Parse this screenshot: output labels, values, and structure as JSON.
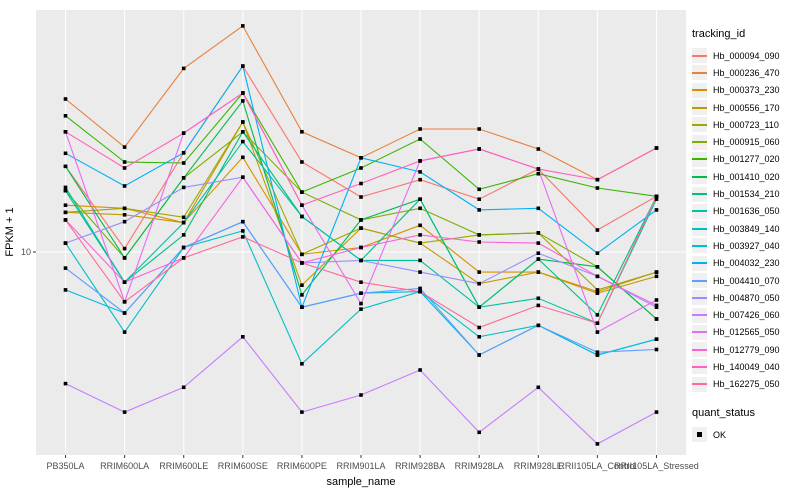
{
  "panel": {
    "bg": "#ebebeb",
    "grid_color": "#ffffff",
    "tick_color": "#333333",
    "tick_label_color": "#4d4d4d"
  },
  "axes": {
    "x_title": "sample_name",
    "y_title": "FPKM + 1"
  },
  "legend": {
    "tracking_title": "tracking_id",
    "quant_title": "quant_status",
    "quant_items": [
      {
        "label": "OK",
        "marker": "black-square"
      }
    ]
  },
  "chart_data": {
    "type": "line",
    "title": "",
    "xlabel": "sample_name",
    "ylabel": "FPKM + 1",
    "yscale": "log10",
    "y_ticks": [
      10
    ],
    "ylim": [
      1.7,
      85
    ],
    "grid": "white-on-gray",
    "legend_position": "right",
    "marker": "black-square",
    "x": [
      "PB350LA",
      "RRIM600LA",
      "RRIM600LE",
      "RRIM600SE",
      "RRIM600PE",
      "RRIM901LA",
      "RRIM928BA",
      "RRIM928LA",
      "RRIM928LE",
      "RRII105LA_Control",
      "RRII105LA_Stressed"
    ],
    "series": [
      {
        "name": "Hb_000094_090",
        "color": "#F8766D",
        "values": [
          21.0,
          10.3,
          23.6,
          50.0,
          21.8,
          16.1,
          18.7,
          15.8,
          20.5,
          12.1,
          16.2
        ]
      },
      {
        "name": "Hb_000236_470",
        "color": "#E8813A",
        "values": [
          37.6,
          24.8,
          49.0,
          70.8,
          28.3,
          22.6,
          29.0,
          29.0,
          24.4,
          18.7,
          24.6
        ]
      },
      {
        "name": "Hb_000373_230",
        "color": "#D89000",
        "values": [
          15.0,
          14.6,
          12.9,
          22.7,
          9.8,
          10.4,
          12.6,
          8.4,
          8.4,
          7.1,
          8.4
        ]
      },
      {
        "name": "Hb_000556_170",
        "color": "#C09B00",
        "values": [
          14.1,
          13.8,
          12.9,
          30.8,
          7.5,
          12.3,
          10.8,
          7.6,
          8.4,
          7.0,
          8.1
        ]
      },
      {
        "name": "Hb_000723_110",
        "color": "#A3A500",
        "values": [
          14.1,
          14.6,
          13.5,
          30.8,
          9.8,
          12.3,
          10.8,
          11.6,
          11.8,
          7.2,
          8.4
        ]
      },
      {
        "name": "Hb_000915_060",
        "color": "#7CAE00",
        "values": [
          17.0,
          9.5,
          19.0,
          28.3,
          16.8,
          13.2,
          14.6,
          11.6,
          11.8,
          8.8,
          5.6
        ]
      },
      {
        "name": "Hb_001277_020",
        "color": "#39B600",
        "values": [
          32.5,
          21.8,
          21.6,
          39.6,
          16.8,
          20.7,
          26.6,
          17.2,
          19.7,
          17.4,
          16.2
        ]
      },
      {
        "name": "Hb_001410_020",
        "color": "#00BB4E",
        "values": [
          21.0,
          9.5,
          19.0,
          37.0,
          6.9,
          13.2,
          15.8,
          6.2,
          9.4,
          8.8,
          5.6
        ]
      },
      {
        "name": "Hb_001534_210",
        "color": "#00BF7D",
        "values": [
          17.0,
          7.7,
          11.6,
          28.3,
          13.6,
          9.3,
          15.8,
          6.2,
          9.4,
          5.8,
          16.2
        ]
      },
      {
        "name": "Hb_001636_050",
        "color": "#00C1A3",
        "values": [
          17.5,
          7.7,
          12.9,
          26.0,
          13.6,
          9.3,
          9.3,
          6.2,
          6.7,
          5.4,
          15.8
        ]
      },
      {
        "name": "Hb_003849_140",
        "color": "#00BFC4",
        "values": [
          10.8,
          5.0,
          10.4,
          12.0,
          3.8,
          6.1,
          7.1,
          4.8,
          5.3,
          4.1,
          4.7
        ]
      },
      {
        "name": "Hb_003927_040",
        "color": "#00BAE0",
        "values": [
          7.2,
          5.9,
          10.4,
          13.0,
          6.2,
          7.0,
          7.1,
          4.1,
          5.3,
          4.1,
          4.7
        ]
      },
      {
        "name": "Hb_004032_230",
        "color": "#00B0F6",
        "values": [
          23.5,
          17.7,
          23.6,
          50.0,
          6.2,
          22.6,
          20.0,
          14.4,
          14.6,
          9.9,
          14.4
        ]
      },
      {
        "name": "Hb_004410_070",
        "color": "#619CFF",
        "values": [
          8.7,
          5.9,
          10.4,
          13.0,
          6.2,
          7.0,
          7.3,
          4.1,
          5.3,
          4.2,
          4.3
        ]
      },
      {
        "name": "Hb_004870_050",
        "color": "#9590FF",
        "values": [
          10.8,
          13.0,
          17.5,
          19.1,
          9.1,
          9.3,
          8.4,
          7.6,
          9.9,
          8.1,
          6.2
        ]
      },
      {
        "name": "Hb_007426_060",
        "color": "#C77CFF",
        "values": [
          3.2,
          2.5,
          3.1,
          4.8,
          2.5,
          2.9,
          3.6,
          2.1,
          3.1,
          1.9,
          2.5
        ]
      },
      {
        "name": "Hb_012565_050",
        "color": "#E76BF3",
        "values": [
          28.3,
          6.5,
          28.0,
          39.6,
          15.0,
          6.4,
          22.0,
          24.4,
          20.5,
          5.0,
          6.6
        ]
      },
      {
        "name": "Hb_012779_090",
        "color": "#FA62DB",
        "values": [
          13.2,
          7.7,
          9.5,
          19.1,
          9.1,
          10.4,
          11.6,
          10.9,
          10.8,
          8.1,
          6.3
        ]
      },
      {
        "name": "Hb_140049_040",
        "color": "#FF62BC",
        "values": [
          28.3,
          20.7,
          28.0,
          39.6,
          15.0,
          18.1,
          22.0,
          24.4,
          20.5,
          18.7,
          24.6
        ]
      },
      {
        "name": "Hb_162275_050",
        "color": "#FF6A98",
        "values": [
          13.2,
          6.5,
          9.5,
          11.4,
          9.1,
          7.7,
          7.1,
          5.2,
          6.3,
          5.4,
          16.2
        ]
      }
    ]
  }
}
